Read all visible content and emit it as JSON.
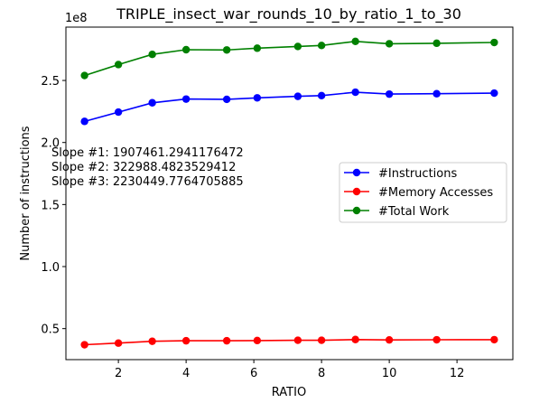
{
  "chart_data": {
    "type": "line",
    "title": "TRIPLE_insect_war_rounds_10_by_ratio_1_to_30",
    "xlabel": "RATIO",
    "ylabel": "Number of instructions",
    "y_multiplier_label": "1e8",
    "xlim": [
      0.45,
      13.65
    ],
    "ylim": [
      0.25,
      2.93
    ],
    "x_ticks": [
      2,
      4,
      6,
      8,
      10,
      12
    ],
    "x_tick_labels": [
      "2",
      "4",
      "6",
      "8",
      "10",
      "12"
    ],
    "y_ticks": [
      0.5,
      1.0,
      1.5,
      2.0,
      2.5
    ],
    "y_tick_labels": [
      "0.5",
      "1.0",
      "1.5",
      "2.0",
      "2.5"
    ],
    "grid": false,
    "legend_position": "center-right",
    "x": [
      1,
      2,
      3,
      4,
      5.2,
      6.1,
      7.3,
      8,
      9,
      10,
      11.4,
      13.1
    ],
    "series": [
      {
        "name": "#Instructions",
        "color": "#0000ff",
        "values": [
          2.17,
          2.245,
          2.32,
          2.35,
          2.348,
          2.36,
          2.372,
          2.378,
          2.405,
          2.39,
          2.393,
          2.398
        ]
      },
      {
        "name": "#Memory Accesses",
        "color": "#ff0000",
        "values": [
          0.37,
          0.383,
          0.398,
          0.402,
          0.402,
          0.404,
          0.406,
          0.406,
          0.412,
          0.409,
          0.41,
          0.411
        ]
      },
      {
        "name": "#Total Work",
        "color": "#008000",
        "values": [
          2.54,
          2.628,
          2.71,
          2.748,
          2.746,
          2.76,
          2.774,
          2.782,
          2.815,
          2.796,
          2.8,
          2.806
        ]
      }
    ],
    "annotations": [
      "Slope #1: 1907461.2941176472",
      "Slope #2: 322988.4823529412",
      "Slope #3: 2230449.7764705885"
    ]
  }
}
